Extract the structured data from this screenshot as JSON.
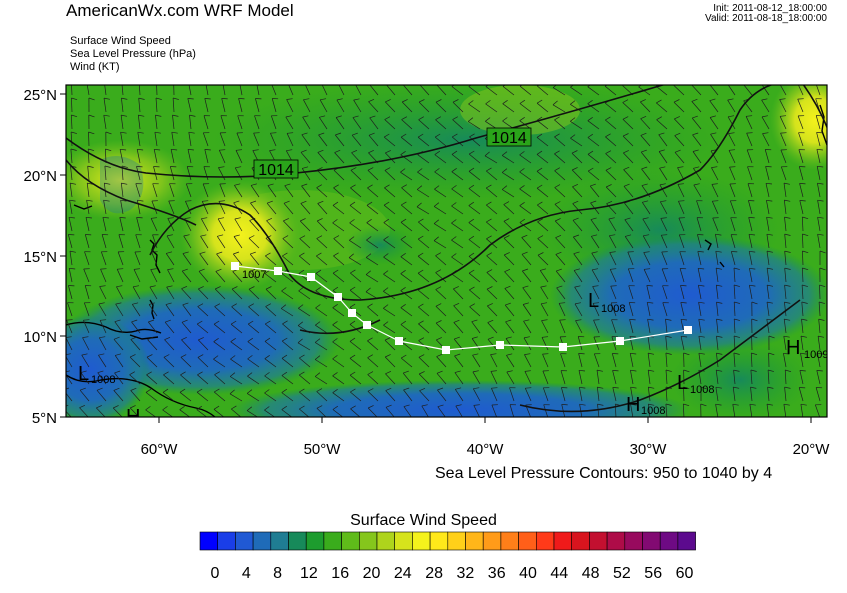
{
  "header": {
    "title": "AmericanWx.com WRF Model",
    "init": "Init: 2011-08-12_18:00:00",
    "valid": "Valid: 2011-08-18_18:00:00",
    "fields": [
      "Surface Wind Speed",
      "Sea Level Pressure   (hPa)",
      "Wind   (KT)"
    ]
  },
  "map": {
    "lat_ticks": [
      "25°N",
      "20°N",
      "15°N",
      "10°N",
      "5°N"
    ],
    "lon_ticks": [
      "60°W",
      "50°W",
      "40°W",
      "30°W",
      "20°W"
    ],
    "contour_labels": [
      "1014",
      "1014"
    ],
    "pressure_centers": [
      {
        "letter": "L",
        "value": "1007"
      },
      {
        "letter": "L",
        "value": "1008"
      },
      {
        "letter": "L",
        "value": "1008"
      },
      {
        "letter": "L",
        "value": "1008"
      },
      {
        "letter": "H",
        "value": "1008"
      },
      {
        "letter": "H",
        "value": "1009"
      },
      {
        "letter": "H",
        "value": ""
      }
    ],
    "colors": {
      "land": "#1a7a2a",
      "track": "#ffffff",
      "contour": "#111111"
    }
  },
  "footer": {
    "contour_note": "Sea Level Pressure Contours: 950 to 1040 by 4"
  },
  "colorbar": {
    "title": "Surface Wind Speed",
    "labels": [
      "0",
      "4",
      "8",
      "12",
      "16",
      "20",
      "24",
      "28",
      "32",
      "36",
      "40",
      "44",
      "48",
      "52",
      "56",
      "60"
    ],
    "colors": [
      "#0000ff",
      "#1a3ee8",
      "#2059d4",
      "#1f6bb8",
      "#1f7d93",
      "#178a5a",
      "#1d9c2e",
      "#3aac1c",
      "#5fbb1a",
      "#85c61c",
      "#aed41c",
      "#d6e31c",
      "#f4f21c",
      "#ffe81a",
      "#ffd019",
      "#ffb619",
      "#ff9b19",
      "#ff7f19",
      "#ff5f19",
      "#ff3a19",
      "#f01a1a",
      "#d8141e",
      "#c31030",
      "#ae0c48",
      "#980a5e",
      "#820a72",
      "#6e0a84",
      "#5c0a8e"
    ]
  }
}
